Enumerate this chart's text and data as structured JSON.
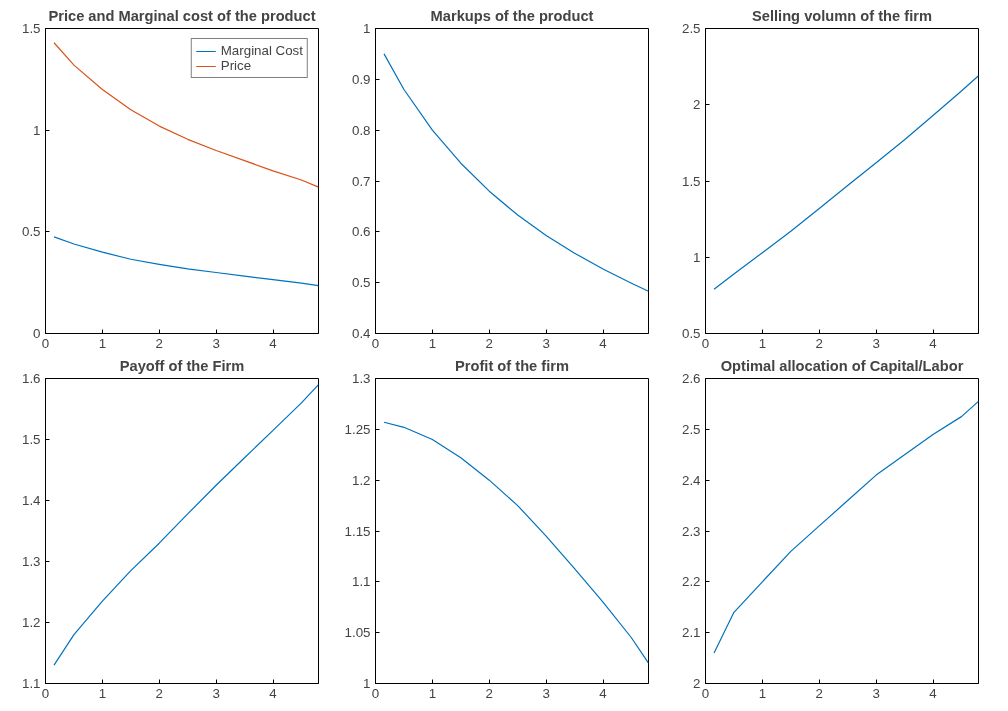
{
  "chart_data": [
    {
      "type": "line",
      "title": "Price and Marginal cost of the product",
      "x": [
        0.15,
        0.5,
        1,
        1.5,
        2,
        2.5,
        3,
        3.5,
        4,
        4.5,
        4.8
      ],
      "xlim": [
        0,
        4.8
      ],
      "xticks": [
        0,
        1,
        2,
        3,
        4
      ],
      "ylim": [
        0,
        1.5
      ],
      "yticks": [
        0,
        0.5,
        1,
        1.5
      ],
      "legend": "top right",
      "grid": false,
      "series": [
        {
          "name": "Marginal Cost",
          "color": "#0072bd",
          "values": [
            0.475,
            0.44,
            0.4,
            0.365,
            0.34,
            0.318,
            0.3,
            0.282,
            0.265,
            0.248,
            0.235
          ]
        },
        {
          "name": "Price",
          "color": "#d95319",
          "values": [
            1.43,
            1.32,
            1.2,
            1.1,
            1.02,
            0.955,
            0.9,
            0.85,
            0.8,
            0.755,
            0.72
          ]
        }
      ]
    },
    {
      "type": "line",
      "title": "Markups of the product",
      "x": [
        0.15,
        0.5,
        1,
        1.5,
        2,
        2.5,
        3,
        3.5,
        4,
        4.5,
        4.8
      ],
      "xlim": [
        0,
        4.8
      ],
      "xticks": [
        0,
        1,
        2,
        3,
        4
      ],
      "ylim": [
        0.4,
        1
      ],
      "yticks": [
        0.4,
        0.5,
        0.6,
        0.7,
        0.8,
        0.9,
        1
      ],
      "grid": false,
      "series": [
        {
          "color": "#0072bd",
          "values": [
            0.95,
            0.88,
            0.8,
            0.735,
            0.68,
            0.633,
            0.593,
            0.558,
            0.527,
            0.499,
            0.483
          ]
        }
      ]
    },
    {
      "type": "line",
      "title": "Selling volumn of the firm",
      "x": [
        0.15,
        0.5,
        1,
        1.5,
        2,
        2.5,
        3,
        3.5,
        4,
        4.5,
        4.8
      ],
      "xlim": [
        0,
        4.8
      ],
      "xticks": [
        0,
        1,
        2,
        3,
        4
      ],
      "ylim": [
        0.5,
        2.5
      ],
      "yticks": [
        0.5,
        1,
        1.5,
        2,
        2.5
      ],
      "grid": false,
      "series": [
        {
          "color": "#0072bd",
          "values": [
            0.79,
            0.89,
            1.03,
            1.17,
            1.32,
            1.47,
            1.62,
            1.77,
            1.93,
            2.09,
            2.19
          ]
        }
      ]
    },
    {
      "type": "line",
      "title": "Payoff of the Firm",
      "x": [
        0.15,
        0.5,
        1,
        1.5,
        2,
        2.5,
        3,
        3.5,
        4,
        4.5,
        4.8
      ],
      "xlim": [
        0,
        4.8
      ],
      "xticks": [
        0,
        1,
        2,
        3,
        4
      ],
      "ylim": [
        1.1,
        1.6
      ],
      "yticks": [
        1.1,
        1.2,
        1.3,
        1.4,
        1.5,
        1.6
      ],
      "grid": false,
      "series": [
        {
          "color": "#0072bd",
          "values": [
            1.13,
            1.18,
            1.235,
            1.285,
            1.33,
            1.378,
            1.425,
            1.47,
            1.515,
            1.56,
            1.59
          ]
        }
      ]
    },
    {
      "type": "line",
      "title": "Profit of the firm",
      "x": [
        0.15,
        0.5,
        1,
        1.5,
        2,
        2.5,
        3,
        3.5,
        4,
        4.5,
        4.8
      ],
      "xlim": [
        0,
        4.8
      ],
      "xticks": [
        0,
        1,
        2,
        3,
        4
      ],
      "ylim": [
        1,
        1.3
      ],
      "yticks": [
        1,
        1.05,
        1.1,
        1.15,
        1.2,
        1.25,
        1.3
      ],
      "grid": false,
      "series": [
        {
          "color": "#0072bd",
          "values": [
            1.257,
            1.252,
            1.24,
            1.222,
            1.2,
            1.175,
            1.145,
            1.113,
            1.08,
            1.045,
            1.02
          ]
        }
      ]
    },
    {
      "type": "line",
      "title": "Optimal allocation of Capital/Labor",
      "x": [
        0.15,
        0.5,
        1,
        1.5,
        2,
        2.5,
        3,
        3.5,
        4,
        4.5,
        4.8
      ],
      "xlim": [
        0,
        4.8
      ],
      "xticks": [
        0,
        1,
        2,
        3,
        4
      ],
      "ylim": [
        2,
        2.6
      ],
      "yticks": [
        2,
        2.1,
        2.2,
        2.3,
        2.4,
        2.5,
        2.6
      ],
      "grid": false,
      "series": [
        {
          "color": "#0072bd",
          "values": [
            2.06,
            2.14,
            2.2,
            2.26,
            2.31,
            2.36,
            2.41,
            2.45,
            2.49,
            2.525,
            2.555
          ]
        }
      ]
    }
  ]
}
